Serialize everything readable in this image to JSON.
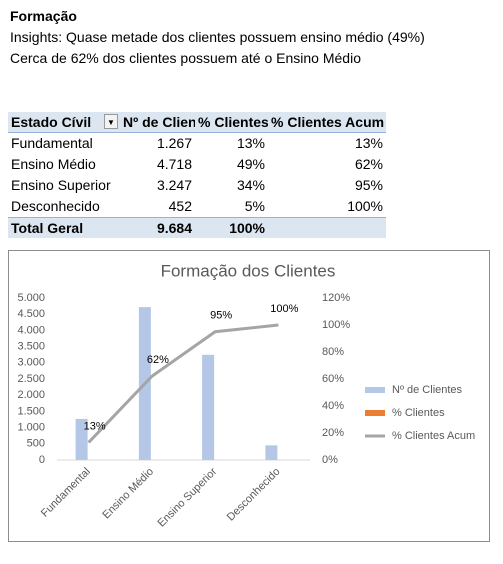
{
  "header": {
    "title": "Formação",
    "lines": [
      "Insights: Quase metade dos clientes possuem ensino médio (49%)",
      "Cerca de 62% dos clientes possuem até o Ensino Médio"
    ]
  },
  "table": {
    "columns": [
      "Estado Cívil",
      "Nº de Clientes",
      "% Clientes",
      "% Clientes Acum"
    ],
    "rows": [
      [
        "Fundamental",
        "1.267",
        "13%",
        "13%"
      ],
      [
        "Ensino Médio",
        "4.718",
        "49%",
        "62%"
      ],
      [
        "Ensino Superior",
        "3.247",
        "34%",
        "95%"
      ],
      [
        "Desconhecido",
        "452",
        "5%",
        "100%"
      ]
    ],
    "total": [
      "Total Geral",
      "9.684",
      "100%"
    ]
  },
  "chart_data": {
    "type": "combo",
    "title": "Formação dos Clientes",
    "categories": [
      "Fundamental",
      "Ensino Médio",
      "Ensino Superior",
      "Desconhecido"
    ],
    "series": [
      {
        "name": "Nº de Clientes",
        "type": "bar",
        "color": "#b4c7e7",
        "axis": "y",
        "values": [
          1267,
          4718,
          3247,
          452
        ]
      },
      {
        "name": "% Clientes",
        "type": "bar",
        "color": "#ed7d31",
        "axis": "y",
        "values": [
          0.13,
          0.49,
          0.34,
          0.05
        ]
      },
      {
        "name": "% Clientes Acum",
        "type": "line",
        "color": "#a5a5a5",
        "axis": "y2",
        "values": [
          13,
          62,
          95,
          100
        ],
        "value_labels": [
          "13%",
          "62%",
          "95%",
          "100%"
        ]
      }
    ],
    "ylim": [
      0,
      5000
    ],
    "yticks": [
      0,
      250,
      500,
      750,
      {
        "value": 1000,
        "label": "1.000"
      },
      {
        "value": 1250,
        "label": "1.250"
      },
      {
        "value": 1500,
        "label": "1.500"
      },
      {
        "value": 1750,
        "label": "1.750"
      },
      {
        "value": 2000,
        "label": "2.000"
      },
      {
        "value": 2250,
        "label": "2.250"
      },
      {
        "value": 2500,
        "label": "2.500"
      },
      {
        "value": 2750,
        "label": "2.750"
      },
      {
        "value": 3000,
        "label": "3.000"
      },
      {
        "value": 3250,
        "label": "3.250"
      },
      {
        "value": 3500,
        "label": "3.500"
      },
      {
        "value": 3750,
        "label": "3.750"
      },
      {
        "value": 4000,
        "label": "4.000"
      },
      {
        "value": 4250,
        "label": "4.250"
      },
      {
        "value": 4500,
        "label": "4.500"
      },
      {
        "value": 4750,
        "label": "4.750"
      },
      {
        "value": 5000,
        "label": "5.000"
      }
    ],
    "y2lim": [
      0,
      120
    ],
    "y2ticks": [
      {
        "value": 0,
        "label": "0%"
      },
      {
        "value": 20,
        "label": "20%"
      },
      {
        "value": 40,
        "label": "40%"
      },
      {
        "value": 60,
        "label": "60%"
      },
      {
        "value": 80,
        "label": "80%"
      },
      {
        "value": 100,
        "label": "100%"
      },
      {
        "value": 120,
        "label": "120%"
      }
    ],
    "legend": "right"
  }
}
